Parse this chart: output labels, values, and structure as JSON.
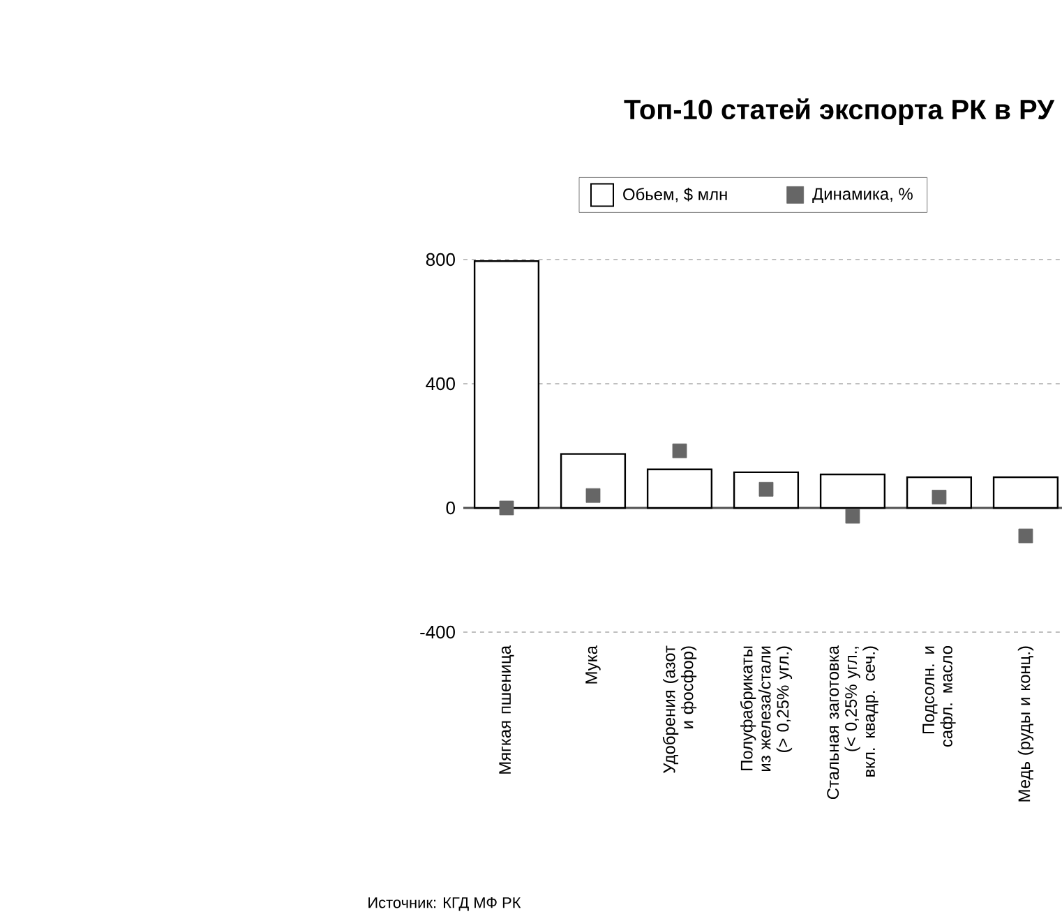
{
  "chart_data": {
    "type": "bar",
    "title": "Топ-10 статей экспорта РК в РУ",
    "categories": [
      "Мягкая пшеница",
      "Мука",
      "Удобрения (азот и фосфор)",
      "Полуфабрикаты из железа/стали (> 0,25% угл.)",
      "Стальная заготовка (< 0,25% угл., вкл. квадр. сеч.)",
      "Подсолн. и сафл. масло",
      "Медь (руды и конц.)"
    ],
    "series": [
      {
        "name": "Обьем, $ млн",
        "color": "#ffffff",
        "values": [
          795,
          174,
          124,
          115,
          108,
          99,
          99
        ]
      },
      {
        "name": "Динамика, %",
        "type": "scatter",
        "color": "#666666",
        "values": [
          0,
          40,
          184,
          60,
          -27,
          35,
          -90
        ]
      }
    ],
    "ylim": [
      -400,
      800
    ],
    "yticks": [
      -400,
      0,
      400,
      800
    ],
    "grid": "y",
    "legend": "top",
    "marker": "square",
    "annotations": [
      "Источник: КГД МФ РК"
    ]
  }
}
